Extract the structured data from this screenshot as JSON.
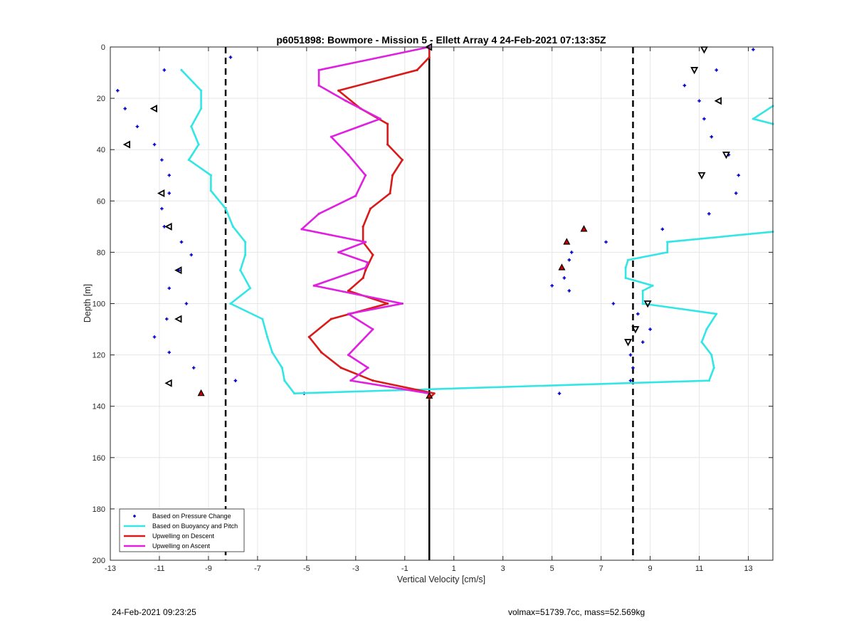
{
  "chart_data": {
    "type": "line",
    "title": "p6051898: Bowmore - Mission 5 - Ellett Array 4 24-Feb-2021 07:13:35Z",
    "xlabel": "Vertical Velocity [cm/s]",
    "ylabel": "Depth [m]",
    "xlim": [
      -13,
      14
    ],
    "ylim": [
      0,
      200
    ],
    "y_reversed": true,
    "grid": true,
    "xticks": [
      -13,
      -11,
      -9,
      -7,
      -5,
      -3,
      -1,
      1,
      3,
      5,
      7,
      9,
      11,
      13
    ],
    "yticks": [
      0,
      20,
      40,
      60,
      80,
      100,
      120,
      140,
      160,
      180,
      200
    ],
    "legend_position": "bottom-left",
    "reference_lines": [
      {
        "x": 0,
        "style": "solid",
        "color": "#000000"
      },
      {
        "x": -8.3,
        "style": "dashed",
        "color": "#000000"
      },
      {
        "x": 8.3,
        "style": "dashed",
        "color": "#000000"
      }
    ],
    "series": [
      {
        "name": "Based on Pressure Change",
        "kind": "points",
        "color": "#0000cc",
        "points": [
          [
            -8.1,
            4
          ],
          [
            -10.8,
            9
          ],
          [
            -12.7,
            17
          ],
          [
            -12.4,
            24
          ],
          [
            -11.9,
            31
          ],
          [
            -11.2,
            38
          ],
          [
            -10.9,
            44
          ],
          [
            -10.6,
            50
          ],
          [
            -10.6,
            57
          ],
          [
            -10.9,
            63
          ],
          [
            -10.8,
            70
          ],
          [
            -10.1,
            76
          ],
          [
            -9.7,
            81
          ],
          [
            -10.2,
            87
          ],
          [
            -10.6,
            94
          ],
          [
            -9.9,
            100
          ],
          [
            -10.7,
            106
          ],
          [
            -11.2,
            113
          ],
          [
            -10.6,
            119
          ],
          [
            -9.6,
            125
          ],
          [
            -7.9,
            130
          ],
          [
            -5.1,
            135
          ],
          [
            13.2,
            1
          ],
          [
            11.7,
            9
          ],
          [
            10.4,
            15
          ],
          [
            11.0,
            21
          ],
          [
            11.2,
            28
          ],
          [
            11.5,
            35
          ],
          [
            12.2,
            42
          ],
          [
            12.6,
            50
          ],
          [
            12.5,
            57
          ],
          [
            11.4,
            65
          ],
          [
            9.5,
            71
          ],
          [
            7.2,
            76
          ],
          [
            5.8,
            80
          ],
          [
            5.7,
            83
          ],
          [
            5.4,
            86
          ],
          [
            5.5,
            90
          ],
          [
            5.0,
            93
          ],
          [
            5.7,
            95
          ],
          [
            7.5,
            100
          ],
          [
            8.5,
            104
          ],
          [
            9.0,
            110
          ],
          [
            8.7,
            115
          ],
          [
            8.2,
            120
          ],
          [
            8.3,
            125
          ],
          [
            8.2,
            130
          ],
          [
            5.3,
            135
          ]
        ]
      },
      {
        "name": "Based on Buoyancy and Pitch",
        "kind": "line",
        "color": "#33e6e6",
        "segments": [
          [
            [
              -10.1,
              9
            ],
            [
              -9.3,
              17
            ],
            [
              -9.3,
              24
            ],
            [
              -9.7,
              31
            ],
            [
              -9.4,
              38
            ],
            [
              -9.8,
              44
            ],
            [
              -8.9,
              50
            ],
            [
              -8.9,
              56
            ],
            [
              -8.3,
              63
            ],
            [
              -8.0,
              70
            ],
            [
              -7.5,
              76
            ],
            [
              -7.5,
              81
            ],
            [
              -7.7,
              87
            ],
            [
              -7.3,
              94
            ],
            [
              -8.1,
              100
            ],
            [
              -6.8,
              106
            ],
            [
              -6.6,
              113
            ],
            [
              -6.4,
              119
            ],
            [
              -6.0,
              125
            ],
            [
              -5.9,
              130
            ],
            [
              -5.5,
              135
            ],
            [
              11.4,
              130
            ],
            [
              11.6,
              125
            ],
            [
              11.5,
              120
            ],
            [
              11.1,
              115
            ],
            [
              11.3,
              110
            ],
            [
              11.7,
              104
            ],
            [
              8.7,
              100
            ],
            [
              8.7,
              95
            ],
            [
              9.1,
              93
            ],
            [
              8.0,
              90
            ],
            [
              8.0,
              86
            ],
            [
              8.1,
              83
            ],
            [
              9.7,
              80
            ],
            [
              9.7,
              76
            ],
            [
              14.0,
              72
            ]
          ],
          [
            [
              14.0,
              23
            ],
            [
              13.2,
              28
            ],
            [
              14.0,
              30
            ]
          ]
        ]
      },
      {
        "name": "Upwelling on Descent",
        "kind": "line",
        "color": "#d91a1a",
        "segments": [
          [
            [
              0.0,
              1
            ],
            [
              0.0,
              4
            ],
            [
              -0.5,
              9
            ],
            [
              -3.7,
              17
            ],
            [
              -2.8,
              24
            ],
            [
              -1.7,
              30
            ],
            [
              -1.7,
              38
            ],
            [
              -1.1,
              44
            ],
            [
              -1.5,
              50
            ],
            [
              -1.6,
              57
            ],
            [
              -2.4,
              63
            ],
            [
              -2.7,
              70
            ],
            [
              -2.7,
              76
            ],
            [
              -2.3,
              81
            ],
            [
              -2.6,
              87
            ],
            [
              -2.7,
              90
            ],
            [
              -3.3,
              95
            ],
            [
              -1.7,
              100
            ],
            [
              -4.0,
              106
            ],
            [
              -4.9,
              113
            ],
            [
              -4.4,
              119
            ],
            [
              -3.6,
              125
            ],
            [
              -2.3,
              130
            ],
            [
              0.2,
              135
            ],
            [
              0.0,
              137
            ]
          ]
        ]
      },
      {
        "name": "Upwelling on Ascent",
        "kind": "line",
        "color": "#e020e0",
        "segments": [
          [
            [
              0.0,
              0
            ],
            [
              -4.5,
              9
            ],
            [
              -4.5,
              15
            ],
            [
              -3.4,
              21
            ],
            [
              -2.0,
              28
            ],
            [
              -4.0,
              35
            ],
            [
              -3.3,
              42
            ],
            [
              -2.6,
              50
            ],
            [
              -3.0,
              58
            ],
            [
              -4.5,
              65
            ],
            [
              -5.2,
              71
            ],
            [
              -2.6,
              76
            ],
            [
              -3.7,
              80
            ],
            [
              -2.5,
              84
            ],
            [
              -2.6,
              86
            ],
            [
              -4.7,
              93
            ],
            [
              -1.1,
              100
            ],
            [
              -3.3,
              104
            ],
            [
              -2.3,
              110
            ],
            [
              -3.3,
              120
            ],
            [
              -2.5,
              125
            ],
            [
              -3.2,
              130
            ],
            [
              0.0,
              135
            ]
          ]
        ]
      }
    ],
    "markers": [
      {
        "kind": "ascent-left",
        "color": "#000000",
        "points": [
          [
            0.0,
            0
          ],
          [
            -11.2,
            24
          ],
          [
            -12.3,
            38
          ],
          [
            -10.9,
            57
          ],
          [
            -10.6,
            70
          ],
          [
            -10.2,
            87
          ],
          [
            -10.2,
            106
          ],
          [
            -10.6,
            131
          ],
          [
            11.8,
            21
          ]
        ]
      },
      {
        "kind": "descent-down",
        "color": "#000000",
        "points": [
          [
            11.2,
            1
          ],
          [
            10.8,
            9
          ],
          [
            12.1,
            42
          ],
          [
            11.1,
            50
          ],
          [
            8.9,
            100
          ],
          [
            8.4,
            110
          ],
          [
            8.1,
            115
          ]
        ]
      },
      {
        "kind": "filled-red",
        "color": "#cc0000",
        "points": [
          [
            6.3,
            71
          ],
          [
            5.6,
            76
          ],
          [
            5.4,
            86
          ],
          [
            -9.3,
            135
          ],
          [
            0.0,
            136
          ]
        ]
      }
    ]
  },
  "footer": {
    "left": "24-Feb-2021 09:23:25",
    "right": "volmax=51739.7cc, mass=52.569kg"
  }
}
